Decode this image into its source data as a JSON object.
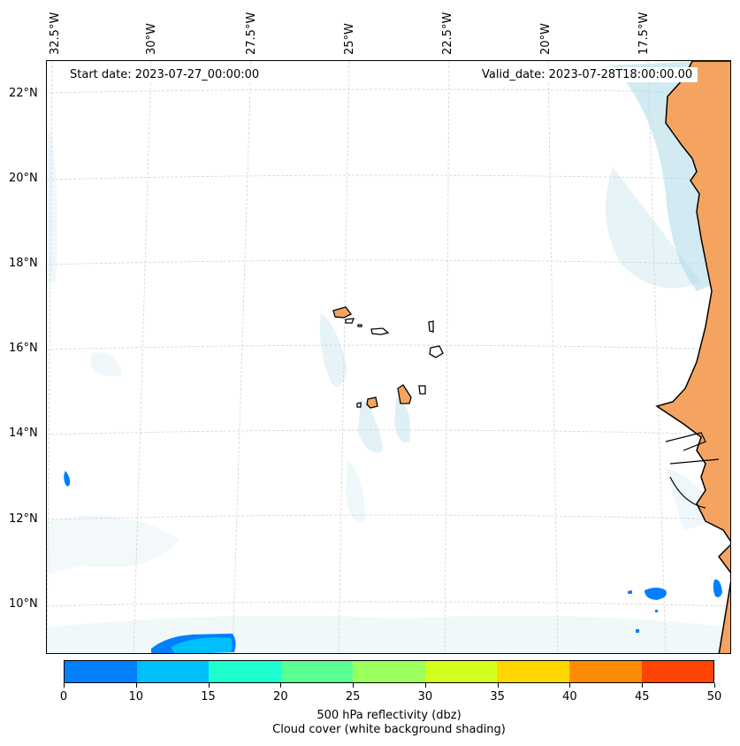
{
  "header": {
    "start_date": "Start date: 2023-07-27_00:00:00",
    "valid_date": "Valid_date: 2023-07-28T18:00:00.00"
  },
  "map": {
    "lon_ticks": [
      "32.5°W",
      "30°W",
      "27.5°W",
      "25°W",
      "22.5°W",
      "20°W",
      "17.5°W"
    ],
    "lat_ticks": [
      "22°N",
      "20°N",
      "18°N",
      "16°N",
      "14°N",
      "12°N",
      "10°N"
    ],
    "land_color": "#f4a460",
    "coast_color": "#000000",
    "cloud_color": "#add8e6",
    "grid_color": "#d3d3d3"
  },
  "colorbar": {
    "tick_labels": [
      "0",
      "10",
      "15",
      "20",
      "25",
      "30",
      "35",
      "40",
      "45",
      "50"
    ],
    "colors": [
      "#007fff",
      "#00bfff",
      "#1effd0",
      "#5cff94",
      "#9bff5c",
      "#d4ff1e",
      "#ffd700",
      "#ff8c00",
      "#ff4500"
    ],
    "label_line1": "500 hPa reflectivity (dbz)",
    "label_line2": "Cloud cover (white background shading)"
  }
}
